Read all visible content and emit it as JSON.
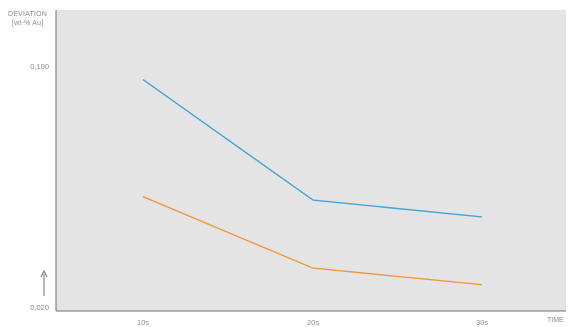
{
  "chart_data": {
    "type": "line",
    "ylabel_line1": "DEVIATION",
    "ylabel_line2": "[wt-% Au]",
    "xlabel": "TIME",
    "categories": [
      "10s",
      "20s",
      "30s"
    ],
    "y_tick_labels": [
      "0,100",
      "0,020"
    ],
    "y_ticks": [
      0.1,
      0.02
    ],
    "ylim": [
      0.02,
      0.1
    ],
    "grid": false,
    "background_color": "#e4e4e4",
    "series": [
      {
        "values": [
          0.0955,
          0.0555,
          0.0499
        ],
        "color": "#41a7d8"
      },
      {
        "values": [
          0.0566,
          0.0329,
          0.0274
        ],
        "color": "#f19a3e"
      }
    ]
  }
}
